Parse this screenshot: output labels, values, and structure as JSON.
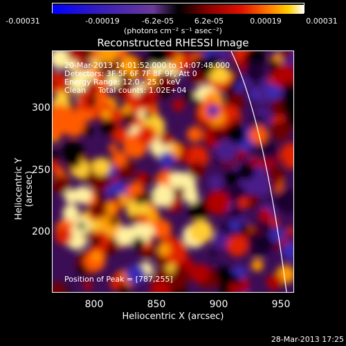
{
  "colorbar": {
    "ticks": [
      "-0.00031",
      "-0.00019",
      "-6.2e-05",
      "6.2e-05",
      "0.00019",
      "0.00031"
    ],
    "units": "(photons cm⁻² s⁻¹ asec⁻²)"
  },
  "title": "Reconstructed RHESSI Image",
  "info": {
    "time": "20-Mar-2013 14:01:52.000 to 14:07:48.000",
    "detectors": "Detectors: 3F 5F 6F 7F 8F 9F, Att 0",
    "energy": "Energy Range: 12.0 - 25.0 keV",
    "clean": "Clean     Total counts: 1.02E+04"
  },
  "peak": "Position of Peak = [787,255]",
  "axes": {
    "xlabel": "Heliocentric X (arcsec)",
    "ylabel": "Heliocentric Y (arcsec)",
    "xticks": [
      "800",
      "850",
      "900",
      "950"
    ],
    "yticks": [
      "300",
      "250",
      "200"
    ]
  },
  "timestamp": "28-Mar-2013 17:25",
  "colors": {
    "background": "#000000",
    "limb": "#ffffff"
  }
}
